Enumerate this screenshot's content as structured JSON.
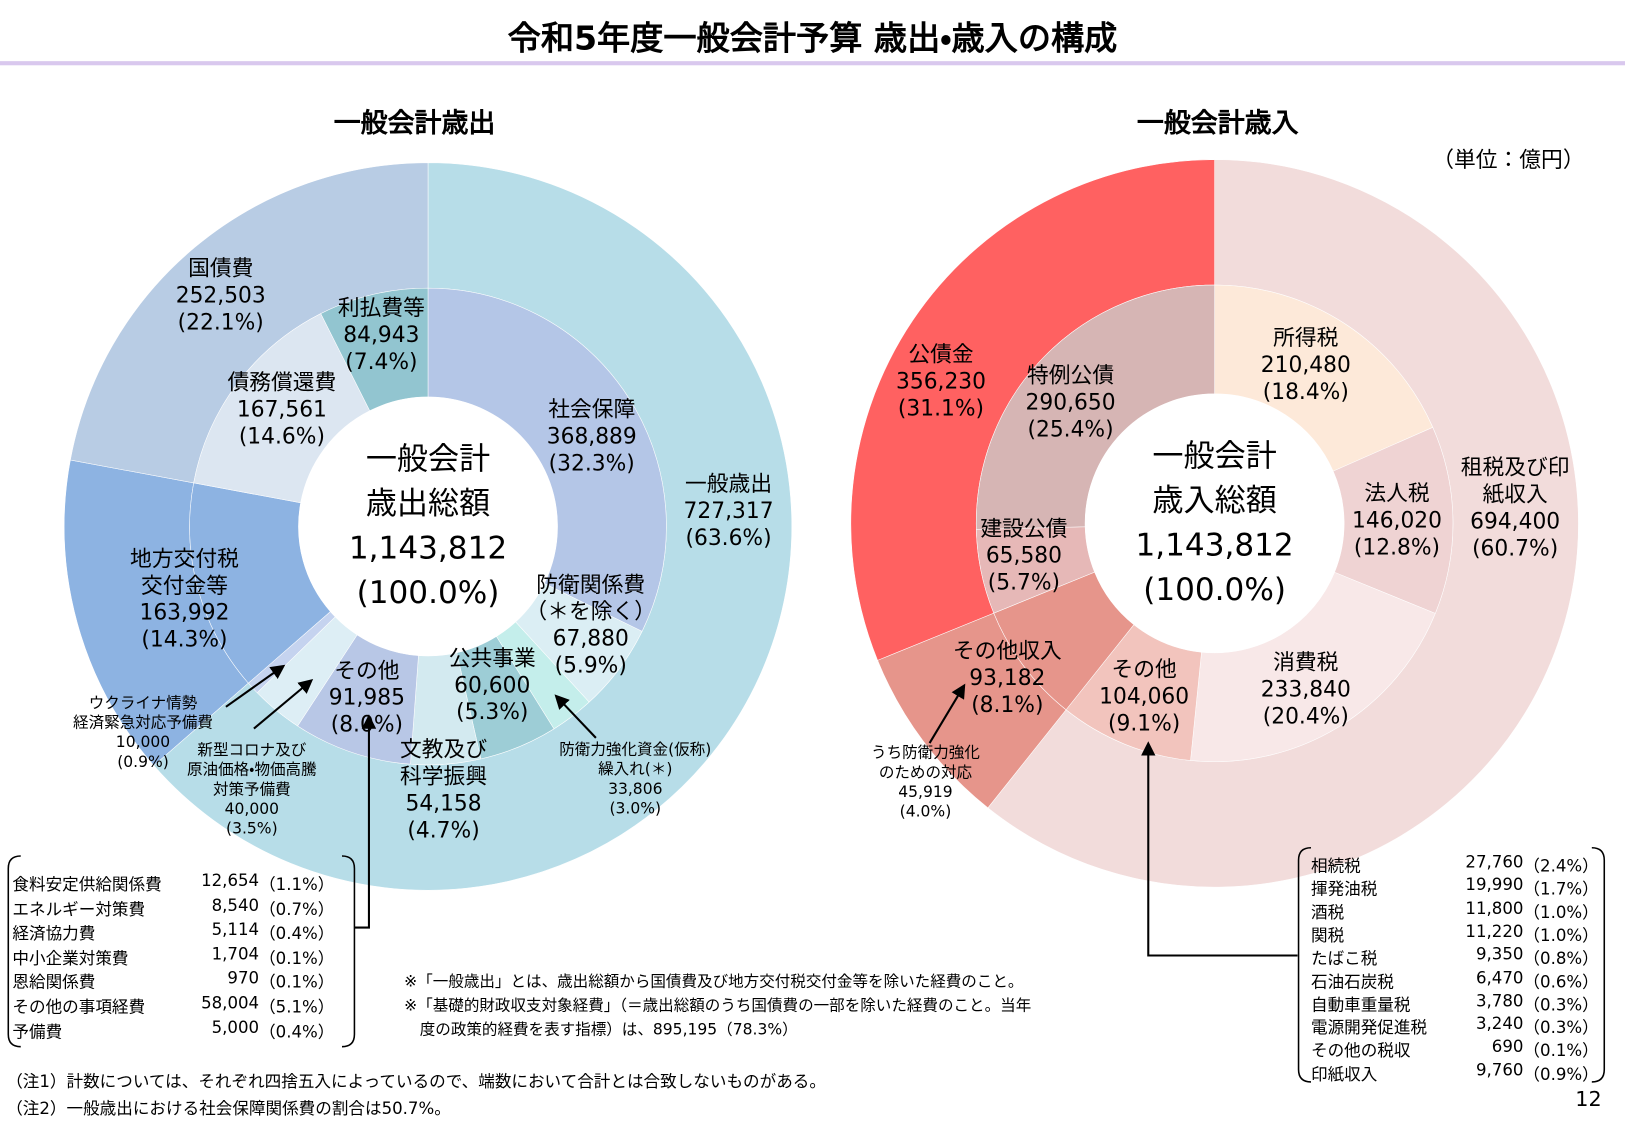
{
  "title": "令和5年度一般会計予算 歳出・歳入の構成",
  "unit": "（単位：億円）",
  "chart_data": [
    {
      "type": "donut",
      "title": "一般会計歳出",
      "center_label": "一般会計\n歳出総額",
      "total_label": "1,143,812",
      "total_percent_label": "(100.0%)",
      "rings": [
        {
          "categories": [
            "一般歳出",
            "地方交付税\n交付金等",
            "国債費"
          ],
          "values": [
            727317,
            163992,
            252503
          ],
          "value_labels": [
            "727,317",
            "163,992",
            "252,503"
          ],
          "percent_labels": [
            "(63.6%)",
            "(14.3%)",
            "(22.1%)"
          ],
          "colors": [
            "#b7dde8",
            "#8db3e2",
            "#b8cce4"
          ]
        },
        {
          "categories": [
            "社会保障",
            "防衛関係費\n（＊を除く）",
            "防衛力強化資金(仮称)\n繰入れ(＊)",
            "公共事業",
            "文教及び\n科学振興",
            "その他",
            "新型コロナ及び\n原油価格・物価高騰\n対策予備費",
            "ウクライナ情勢\n経済緊急対応予備費",
            null,
            "債務償還費",
            "利払費等"
          ],
          "values": [
            368889,
            67880,
            33806,
            60600,
            54158,
            91985,
            40000,
            10000,
            163992,
            167561,
            84943
          ],
          "value_labels": [
            "368,889",
            "67,880",
            "33,806",
            "60,600",
            "54,158",
            "91,985",
            "40,000",
            "10,000",
            null,
            "167,561",
            "84,943"
          ],
          "percent_labels": [
            "(32.3%)",
            "(5.9%)",
            "(3.0%)",
            "(5.3%)",
            "(4.7%)",
            "(8.0%)",
            "(3.5%)",
            "(0.9%)",
            null,
            "(14.6%)",
            "(7.4%)"
          ],
          "colors": [
            "#b4c6e7",
            "#dbeef4",
            "#c4eeeb",
            "#9dcdd6",
            "#d3eaf0",
            "#b8c7e6",
            "#ddeef5",
            "#c5d3ef",
            "#8db3e2",
            "#dce6f1",
            "#92c5d0"
          ]
        }
      ]
    },
    {
      "type": "donut",
      "title": "一般会計歳入",
      "center_label": "一般会計\n歳入総額",
      "total_label": "1,143,812",
      "total_percent_label": "(100.0%)",
      "rings": [
        {
          "categories": [
            "租税及び印紙収入",
            "その他収入",
            "公債金"
          ],
          "values": [
            694400,
            93182,
            356230
          ],
          "value_labels": [
            "694,400",
            "93,182",
            "356,230"
          ],
          "percent_labels": [
            "(60.7%)",
            "(8.1%)",
            "(31.1%)"
          ],
          "colors": [
            "#f2dcdb",
            "#e6958b",
            "#ff6161"
          ]
        },
        {
          "categories": [
            "所得税",
            "法人税",
            "消費税",
            "その他",
            null,
            "建設公債",
            "特例公債"
          ],
          "values": [
            210480,
            146020,
            233840,
            104060,
            93182,
            65580,
            290650
          ],
          "value_labels": [
            "210,480",
            "146,020",
            "233,840",
            "104,060",
            null,
            "65,580",
            "290,650"
          ],
          "percent_labels": [
            "(18.4%)",
            "(12.8%)",
            "(20.4%)",
            "(9.1%)",
            null,
            "(5.7%)",
            "(25.4%)"
          ],
          "colors": [
            "#fde9d9",
            "#efd3d3",
            "#f8e8e8",
            "#f2c4bd",
            "#e6958b",
            "#e6b8b7",
            "#d6b5b4"
          ]
        }
      ],
      "annotation": {
        "text": "うち防衛力強化\nのための対応",
        "value_label": "45,919",
        "percent_label": "(4.0%)"
      }
    }
  ],
  "expense_breakdown": {
    "rows": [
      [
        "食料安定供給関係費",
        "12,654",
        "（1.1%）"
      ],
      [
        "エネルギー対策費",
        "8,540",
        "（0.7%）"
      ],
      [
        "経済協力費",
        "5,114",
        "（0.4%）"
      ],
      [
        "中小企業対策費",
        "1,704",
        "（0.1%）"
      ],
      [
        "恩給関係費",
        "970",
        "（0.1%）"
      ],
      [
        "その他の事項経費",
        "58,004",
        "（5.1%）"
      ],
      [
        "予備費",
        "5,000",
        "（0.4%）"
      ]
    ]
  },
  "revenue_breakdown": {
    "rows": [
      [
        "相続税",
        "27,760",
        "（2.4%）"
      ],
      [
        "揮発油税",
        "19,990",
        "（1.7%）"
      ],
      [
        "酒税",
        "11,800",
        "（1.0%）"
      ],
      [
        "関税",
        "11,220",
        "（1.0%）"
      ],
      [
        "たばこ税",
        "9,350",
        "（0.8%）"
      ],
      [
        "石油石炭税",
        "6,470",
        "（0.6%）"
      ],
      [
        "自動車重量税",
        "3,780",
        "（0.3%）"
      ],
      [
        "電源開発促進税",
        "3,240",
        "（0.3%）"
      ],
      [
        "その他の税収",
        "690",
        "（0.1%）"
      ],
      [
        "印紙収入",
        "9,760",
        "（0.9%）"
      ]
    ]
  },
  "notes": [
    "※「一般歳出」とは、歳出総額から国債費及び地方交付税交付金等を除いた経費のこと。",
    "※「基礎的財政収支対象経費」（＝歳出総額のうち国債費の一部を除いた経費のこと。当年\n　度の政策的経費を表す指標）は、895,195（78.3%）"
  ],
  "footnotes": [
    "（注1）計数については、それぞれ四捨五入によっているので、端数において合計とは合致しないものがある。",
    "（注2）一般歳出における社会保障関係費の割合は50.7%。"
  ],
  "page_number": "12"
}
